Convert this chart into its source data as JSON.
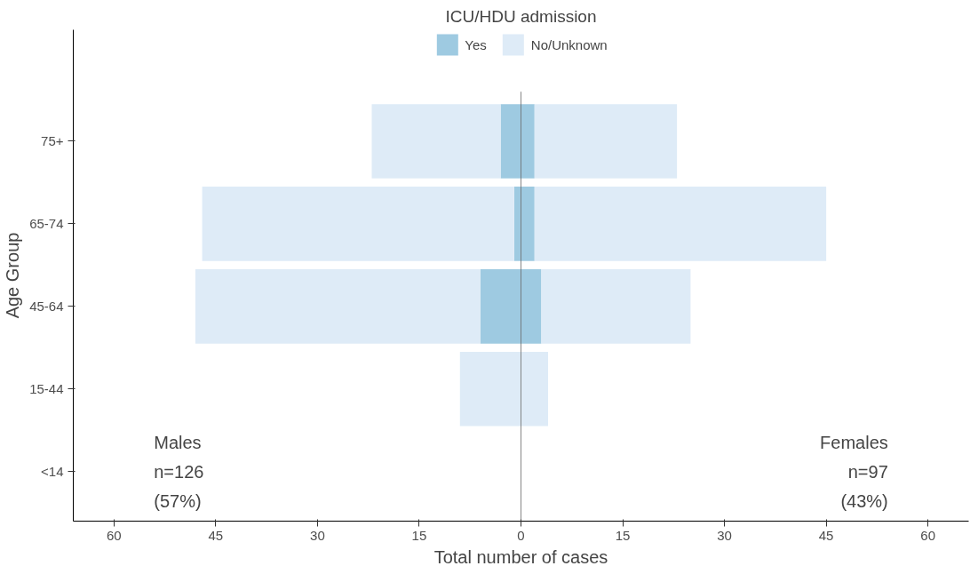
{
  "chart_data": {
    "type": "bar",
    "orientation": "horizontal",
    "stacked": true,
    "xlabel": "Total number of cases",
    "ylabel": "Age Group",
    "legend_title": "ICU/HDU admission",
    "legend": "top",
    "categories": [
      "75+",
      "65-74",
      "45-64",
      "15-44",
      "<14"
    ],
    "series": [
      {
        "name": "Yes",
        "color": "#9ecae1",
        "values": [
          -3,
          -1,
          -6,
          0,
          0
        ]
      },
      {
        "name": "No/Unknown",
        "color": "#deebf7",
        "values": [
          -19,
          -46,
          -42,
          -9,
          0
        ]
      },
      {
        "color": "#9ecae1",
        "values": [
          2,
          2,
          3,
          0,
          0
        ]
      },
      {
        "color": "#deebf7",
        "values": [
          21,
          43,
          22,
          4,
          0
        ]
      }
    ],
    "xlim": [
      -66,
      66
    ],
    "xticks": [
      {
        "value": -60,
        "label": "60"
      },
      {
        "value": -45,
        "label": "45"
      },
      {
        "value": -30,
        "label": "30"
      },
      {
        "value": -15,
        "label": "15"
      },
      0,
      15,
      30,
      45,
      60
    ],
    "ref_lines": [
      {
        "axis": "x",
        "value": 0,
        "color": "#555555"
      }
    ],
    "annotations": [
      "Males\nn=126\n(57%)",
      "Females\nn=97\n(43%)"
    ],
    "grid": false
  }
}
